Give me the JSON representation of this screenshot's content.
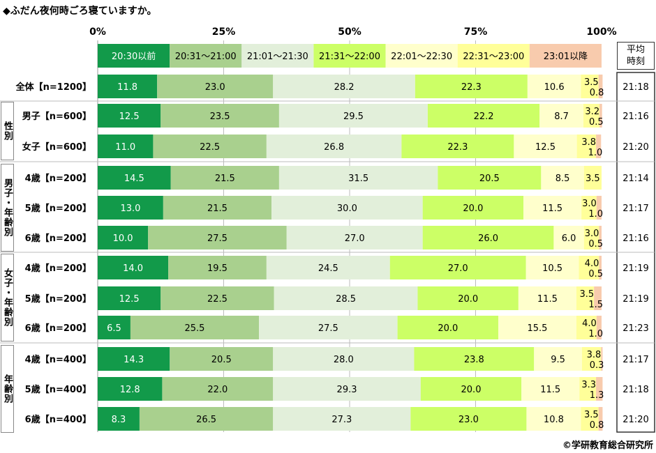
{
  "chart_data": {
    "type": "bar",
    "orientation": "horizontal-stacked-100",
    "title": "◆ふだん夜何時ごろ寝ていますか。",
    "xlim": [
      0,
      100
    ],
    "xticks": [
      "0%",
      "25%",
      "50%",
      "75%",
      "100%"
    ],
    "legend": [
      "20:30以前",
      "20:31～21:00",
      "21:01～21:30",
      "21:31～22:00",
      "22:01～22:30",
      "22:31～23:00",
      "23:01以降"
    ],
    "legend_placement": "top",
    "colors": [
      "#129a4a",
      "#a9d08e",
      "#e2efda",
      "#ccff66",
      "#ffffcc",
      "#ffff99",
      "#f8cbad"
    ],
    "avg_header": "平均時刻",
    "groups": [
      {
        "label": "",
        "rows": [
          0
        ]
      },
      {
        "label": "性別",
        "rows": [
          1,
          2
        ]
      },
      {
        "label": "男子・年齢別",
        "rows": [
          3,
          4,
          5
        ]
      },
      {
        "label": "女子・年齢別",
        "rows": [
          6,
          7,
          8
        ]
      },
      {
        "label": "年齢別",
        "rows": [
          9,
          10,
          11
        ]
      }
    ],
    "categories": [
      "全体【n=1200】",
      "男子【n=600】",
      "女子【n=600】",
      "4歳【n=200】",
      "5歳【n=200】",
      "6歳【n=200】",
      "4歳【n=200】",
      "5歳【n=200】",
      "6歳【n=200】",
      "4歳【n=400】",
      "5歳【n=400】",
      "6歳【n=400】"
    ],
    "values": [
      [
        11.8,
        23.0,
        28.2,
        22.3,
        10.6,
        3.5,
        0.8
      ],
      [
        12.5,
        23.5,
        29.5,
        22.2,
        8.7,
        3.2,
        0.5
      ],
      [
        11.0,
        22.5,
        26.8,
        22.3,
        12.5,
        3.8,
        1.0
      ],
      [
        14.5,
        21.5,
        31.5,
        20.5,
        8.5,
        3.5,
        0
      ],
      [
        13.0,
        21.5,
        30.0,
        20.0,
        11.5,
        3.0,
        1.0
      ],
      [
        10.0,
        27.5,
        27.0,
        26.0,
        6.0,
        3.0,
        0.5
      ],
      [
        14.0,
        19.5,
        24.5,
        27.0,
        10.5,
        4.0,
        0.5
      ],
      [
        12.5,
        22.5,
        28.5,
        20.0,
        11.5,
        3.5,
        1.5
      ],
      [
        6.5,
        25.5,
        27.5,
        20.0,
        15.5,
        4.0,
        1.0
      ],
      [
        14.3,
        20.5,
        28.0,
        23.8,
        9.5,
        3.8,
        0.3
      ],
      [
        12.8,
        22.0,
        29.3,
        20.0,
        11.5,
        3.3,
        1.3
      ],
      [
        8.3,
        26.5,
        27.3,
        23.0,
        10.8,
        3.5,
        0.8
      ]
    ],
    "average_times": [
      "21:18",
      "21:16",
      "21:20",
      "21:14",
      "21:17",
      "21:16",
      "21:19",
      "21:19",
      "21:23",
      "21:17",
      "21:18",
      "21:20"
    ],
    "source": "©学研教育総合研究所"
  }
}
